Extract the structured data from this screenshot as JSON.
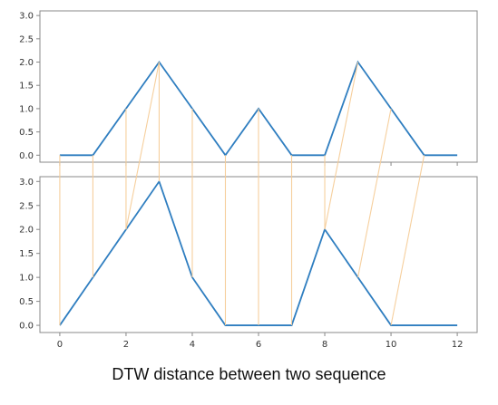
{
  "caption": "DTW distance between two sequence",
  "colors": {
    "series": "#2f7ec0",
    "warp_link": "#f6cc98",
    "axes": "#888888",
    "background": "#ffffff"
  },
  "chart_data": [
    {
      "type": "line",
      "title": "",
      "xlabel": "",
      "ylabel": "",
      "x": [
        0,
        1,
        2,
        3,
        4,
        5,
        6,
        7,
        8,
        9,
        10,
        11,
        12
      ],
      "series": [
        {
          "values": [
            0,
            0,
            1,
            2,
            1,
            0,
            1,
            0,
            0,
            2,
            1,
            0,
            0
          ]
        }
      ],
      "xlim": [
        -0.6,
        12.6
      ],
      "ylim": [
        -0.15,
        3.1
      ],
      "yticks": [
        "0.0",
        "0.5",
        "1.0",
        "1.5",
        "2.0",
        "2.5",
        "3.0"
      ],
      "xticks": [],
      "grid": false
    },
    {
      "type": "line",
      "title": "",
      "xlabel": "",
      "ylabel": "",
      "x": [
        0,
        1,
        2,
        3,
        4,
        5,
        6,
        7,
        8,
        9,
        10,
        11,
        12
      ],
      "series": [
        {
          "values": [
            0,
            1,
            2,
            3,
            1,
            0,
            0,
            0,
            2,
            1,
            0,
            0,
            0
          ]
        }
      ],
      "xlim": [
        -0.6,
        12.6
      ],
      "ylim": [
        -0.15,
        3.1
      ],
      "yticks": [
        "0.0",
        "0.5",
        "1.0",
        "1.5",
        "2.0",
        "2.5",
        "3.0"
      ],
      "xticks": [
        "0",
        "2",
        "4",
        "6",
        "8",
        "10",
        "12"
      ],
      "grid": false
    }
  ],
  "warping_path": [
    [
      0,
      0
    ],
    [
      1,
      1
    ],
    [
      2,
      2
    ],
    [
      3,
      3
    ],
    [
      3,
      2
    ],
    [
      4,
      4
    ],
    [
      5,
      5
    ],
    [
      6,
      6
    ],
    [
      7,
      7
    ],
    [
      8,
      8
    ],
    [
      9,
      8
    ],
    [
      10,
      9
    ],
    [
      11,
      10
    ]
  ]
}
